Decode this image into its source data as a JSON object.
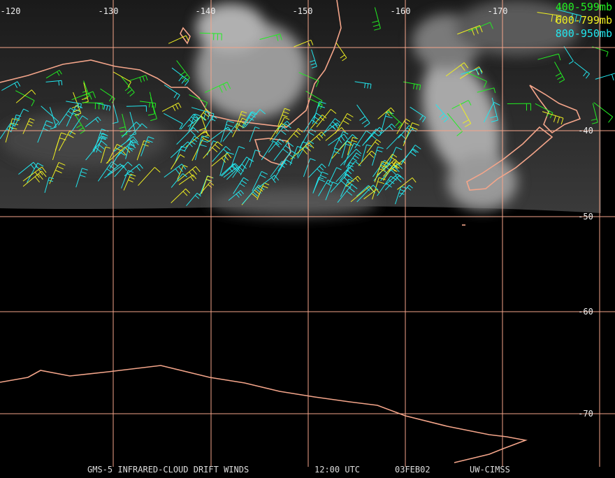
{
  "map": {
    "longitude_labels": [
      "-120",
      "-130",
      "-140",
      "-150",
      "-160",
      "-170"
    ],
    "latitude_labels": [
      "-40",
      "-50",
      "-60",
      "-70"
    ],
    "legend": [
      {
        "label": "400-599mb",
        "color": "#22ee22"
      },
      {
        "label": "600-799mb",
        "color": "#eeee22"
      },
      {
        "label": "800-950mb",
        "color": "#22e6ee"
      }
    ],
    "footer": {
      "satellite": "GMS-5 INFRARED-CLOUD DRIFT WINDS",
      "time": "12:00 UTC",
      "date": "03FEB02",
      "source": "UW-CIMSS"
    }
  }
}
